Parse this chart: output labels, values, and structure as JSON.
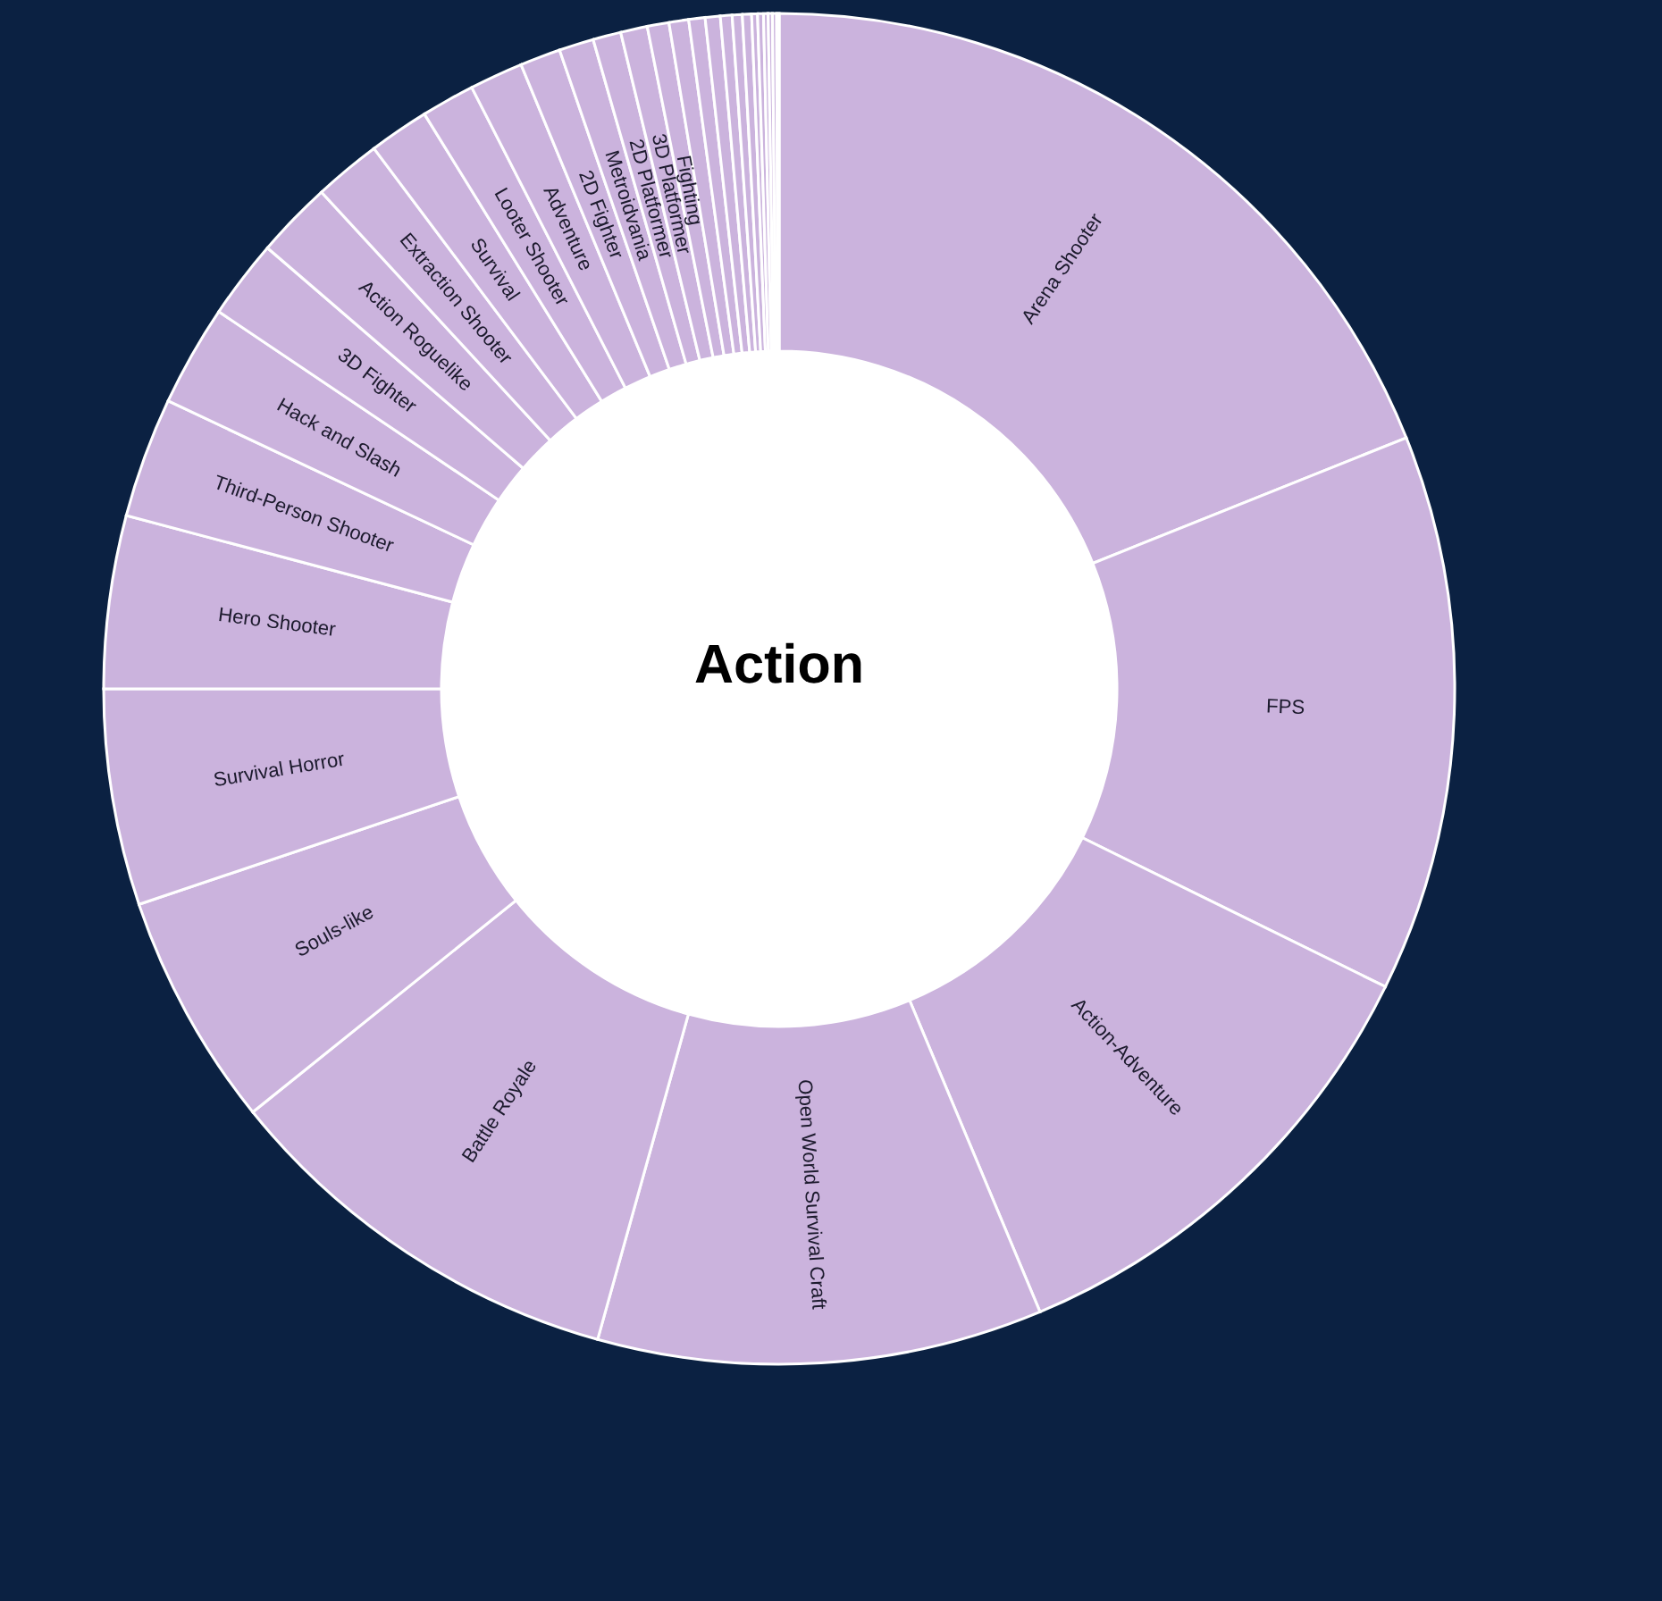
{
  "chart_data": {
    "type": "donut",
    "title": "Action",
    "categories": [
      "Arena Shooter",
      "FPS",
      "Action-Adventure",
      "Open World Survival Craft",
      "Battle Royale",
      "Souls-like",
      "Survival Horror",
      "Hero Shooter",
      "Third-Person Shooter",
      "Hack and Slash",
      "3D Fighter",
      "Action Roguelike",
      "Extraction Shooter",
      "Survival",
      "Looter Shooter",
      "Adventure",
      "2D Fighter",
      "Metroidvania",
      "2D Platformer",
      "3D Platformer",
      "Fighting",
      null,
      null,
      null,
      null,
      null,
      null,
      null,
      null,
      null,
      null,
      null,
      null
    ],
    "values": [
      18.94,
      13.33,
      11.42,
      10.64,
      9.89,
      5.61,
      5.17,
      4.13,
      2.88,
      2.42,
      1.89,
      1.83,
      1.61,
      1.44,
      1.28,
      1.28,
      0.97,
      0.83,
      0.67,
      0.64,
      0.52,
      0.47,
      0.39,
      0.36,
      0.28,
      0.24,
      0.22,
      0.14,
      0.14,
      0.11,
      0.1,
      0.1,
      0.06
    ],
    "colors": [
      "#cbb3dd",
      "#cbb3dd",
      "#cbb3dd",
      "#cbb3dd",
      "#cbb3dd",
      "#cbb3dd",
      "#cbb3dd",
      "#cbb3dd",
      "#cbb3dd",
      "#cbb3dd",
      "#cbb3dd",
      "#cbb3dd",
      "#cbb3dd",
      "#cbb3dd",
      "#cbb3dd",
      "#cbb3dd",
      "#cbb3dd",
      "#cbb3dd",
      "#cbb3dd",
      "#cbb3dd",
      "#cbb3dd",
      "#cbb3dd",
      "#cbb3dd",
      "#cbb3dd",
      "#cbb3dd",
      "#cbb3dd",
      "#cbb3dd",
      "#cbb3dd",
      "#cbb3dd",
      "#cbb3dd",
      "#cbb3dd",
      "#cbb3dd",
      "#cbb3dd"
    ]
  }
}
